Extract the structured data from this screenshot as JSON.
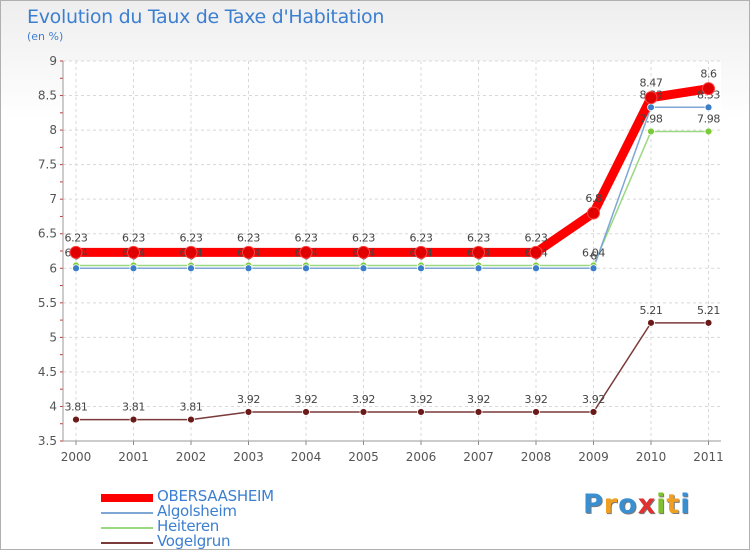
{
  "chart_data": {
    "type": "line",
    "title": "Evolution du Taux de Taxe d'Habitation",
    "subtitle": "(en %)",
    "xlabel": "",
    "ylabel": "",
    "ylim": [
      3.5,
      9
    ],
    "yticks": [
      "3.5",
      "4",
      "4.5",
      "5",
      "5.5",
      "6",
      "6.5",
      "7",
      "7.5",
      "8",
      "8.5",
      "9"
    ],
    "categories": [
      "2000",
      "2001",
      "2002",
      "2003",
      "2004",
      "2005",
      "2006",
      "2007",
      "2008",
      "2009",
      "2010",
      "2011"
    ],
    "grid": true,
    "legend": "bottom-left",
    "series": [
      {
        "name": "Vogelgrun",
        "color": "#7a3a3a",
        "marker_color": "#6b1a1a",
        "values": [
          3.81,
          3.81,
          3.81,
          3.92,
          3.92,
          3.92,
          3.92,
          3.92,
          3.92,
          3.92,
          5.21,
          5.21
        ],
        "labels": [
          "3.81",
          "3.81",
          "3.81",
          "3.92",
          "3.92",
          "3.92",
          "3.92",
          "3.92",
          "3.92",
          "3.92",
          "5.21",
          "5.21"
        ]
      },
      {
        "name": "Heiteren",
        "color": "#9ad882",
        "marker_color": "#7ccc3a",
        "values": [
          6.04,
          6.04,
          6.04,
          6.04,
          6.04,
          6.04,
          6.04,
          6.04,
          6.04,
          6.04,
          7.98,
          7.98
        ],
        "labels": [
          "6.04",
          "6.04",
          "6.04",
          "6.04",
          "6.04",
          "6.04",
          "6.04",
          "6.04",
          "6.04",
          "6.04",
          "7.98",
          "7.98"
        ]
      },
      {
        "name": "Algolsheim",
        "color": "#7fa7d6",
        "marker_color": "#3a7dc9",
        "values": [
          6.0,
          6.0,
          6.0,
          6.0,
          6.0,
          6.0,
          6.0,
          6.0,
          6.0,
          6.0,
          8.33,
          8.33
        ],
        "labels": [
          "6",
          "6",
          "6",
          "6",
          "6",
          "6",
          "6",
          "6",
          "6",
          "6",
          "8.33",
          "8.33"
        ]
      },
      {
        "name": "OBERSAASHEIM",
        "color": "#ff0000",
        "marker_color": "#e00000",
        "values": [
          6.23,
          6.23,
          6.23,
          6.23,
          6.23,
          6.23,
          6.23,
          6.23,
          6.23,
          6.8,
          8.47,
          8.6
        ],
        "labels": [
          "6.23",
          "6.23",
          "6.23",
          "6.23",
          "6.23",
          "6.23",
          "6.23",
          "6.23",
          "6.23",
          "6.8",
          "8.47",
          "8.6"
        ]
      }
    ],
    "legend_order": [
      "OBERSAASHEIM",
      "Algolsheim",
      "Heiteren",
      "Vogelgrun"
    ]
  },
  "branding": {
    "logo_text": "Proxiti",
    "logo_colors": [
      "#3a8fd0",
      "#f0a020",
      "#3a8fd0",
      "#e03030",
      "#80c030",
      "#f0a020",
      "#3a8fd0"
    ]
  }
}
